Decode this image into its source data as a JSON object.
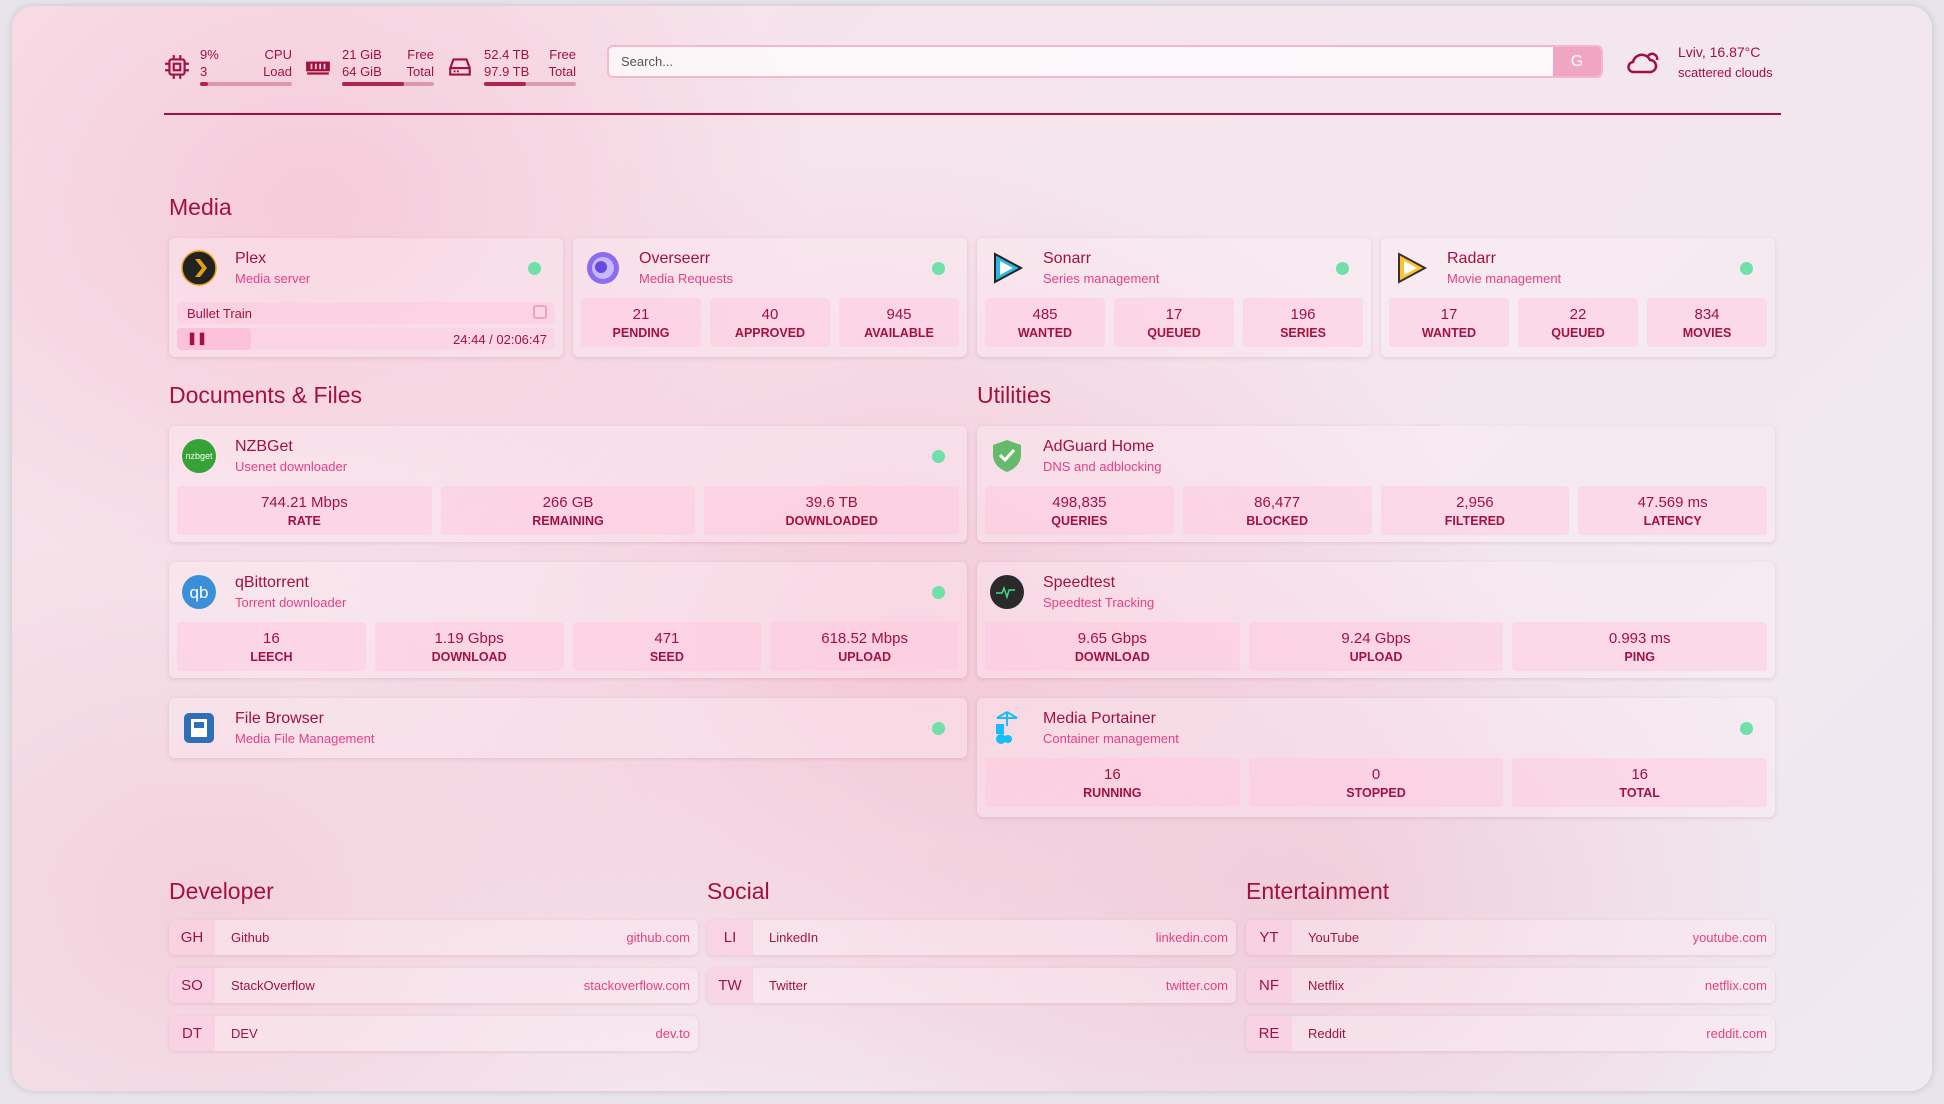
{
  "resources": {
    "cpu": {
      "value": "9%",
      "value2": "3",
      "label": "CPU",
      "label2": "Load",
      "usage_percent": 9
    },
    "memory": {
      "value": "21 GiB",
      "value2": "64 GiB",
      "label": "Free",
      "label2": "Total",
      "usage_percent": 67
    },
    "disk": {
      "value": "52.4 TB",
      "value2": "97.9 TB",
      "label": "Free",
      "label2": "Total",
      "usage_percent": 46
    }
  },
  "search": {
    "placeholder": "Search...",
    "button_label": "G"
  },
  "weather": {
    "location_temp": "Lviv, 16.87°C",
    "condition": "scattered clouds",
    "icon": "cloud-sun-icon"
  },
  "colors": {
    "accent": "#a3123f",
    "secondary": "#e53f86",
    "status_online": "#6fe0a8"
  },
  "groups": {
    "media": "Media",
    "documents": "Documents & Files",
    "utilities": "Utilities",
    "developer": "Developer",
    "social": "Social",
    "entertainment": "Entertainment"
  },
  "plex": {
    "title": "Plex",
    "subtitle": "Media server",
    "now_playing": "Bullet Train",
    "time": "24:44 / 02:06:47",
    "progress_percent": 19.5
  },
  "services": [
    {
      "id": "overseerr",
      "title": "Overseerr",
      "subtitle": "Media Requests",
      "icon": "overseerr-icon",
      "stats": [
        {
          "v": "21",
          "k": "PENDING"
        },
        {
          "v": "40",
          "k": "APPROVED"
        },
        {
          "v": "945",
          "k": "AVAILABLE"
        }
      ]
    },
    {
      "id": "sonarr",
      "title": "Sonarr",
      "subtitle": "Series management",
      "icon": "sonarr-icon",
      "stats": [
        {
          "v": "485",
          "k": "WANTED"
        },
        {
          "v": "17",
          "k": "QUEUED"
        },
        {
          "v": "196",
          "k": "SERIES"
        }
      ]
    },
    {
      "id": "radarr",
      "title": "Radarr",
      "subtitle": "Movie management",
      "icon": "radarr-icon",
      "stats": [
        {
          "v": "17",
          "k": "WANTED"
        },
        {
          "v": "22",
          "k": "QUEUED"
        },
        {
          "v": "834",
          "k": "MOVIES"
        }
      ]
    },
    {
      "id": "nzbget",
      "title": "NZBGet",
      "subtitle": "Usenet downloader",
      "icon": "nzbget-icon",
      "stats": [
        {
          "v": "744.21 Mbps",
          "k": "RATE"
        },
        {
          "v": "266 GB",
          "k": "REMAINING"
        },
        {
          "v": "39.6 TB",
          "k": "DOWNLOADED"
        }
      ]
    },
    {
      "id": "qbittorrent",
      "title": "qBittorrent",
      "subtitle": "Torrent downloader",
      "icon": "qbittorrent-icon",
      "stats": [
        {
          "v": "16",
          "k": "LEECH"
        },
        {
          "v": "1.19 Gbps",
          "k": "DOWNLOAD"
        },
        {
          "v": "471",
          "k": "SEED"
        },
        {
          "v": "618.52 Mbps",
          "k": "UPLOAD"
        }
      ]
    },
    {
      "id": "filebrowser",
      "title": "File Browser",
      "subtitle": "Media File Management",
      "icon": "file-browser-icon",
      "stats": []
    },
    {
      "id": "adguard",
      "title": "AdGuard Home",
      "subtitle": "DNS and adblocking",
      "icon": "adguard-shield-icon",
      "nodot": true,
      "stats": [
        {
          "v": "498,835",
          "k": "QUERIES"
        },
        {
          "v": "86,477",
          "k": "BLOCKED"
        },
        {
          "v": "2,956",
          "k": "FILTERED"
        },
        {
          "v": "47.569 ms",
          "k": "LATENCY"
        }
      ]
    },
    {
      "id": "speedtest",
      "title": "Speedtest",
      "subtitle": "Speedtest Tracking",
      "icon": "speedtest-icon",
      "nodot": true,
      "stats": [
        {
          "v": "9.65 Gbps",
          "k": "DOWNLOAD"
        },
        {
          "v": "9.24 Gbps",
          "k": "UPLOAD"
        },
        {
          "v": "0.993 ms",
          "k": "PING"
        }
      ]
    },
    {
      "id": "portainer",
      "title": "Media Portainer",
      "subtitle": "Container management",
      "icon": "portainer-icon",
      "stats": [
        {
          "v": "16",
          "k": "RUNNING"
        },
        {
          "v": "0",
          "k": "STOPPED"
        },
        {
          "v": "16",
          "k": "TOTAL"
        }
      ]
    }
  ],
  "bookmarks": [
    [
      {
        "abbr": "GH",
        "name": "Github",
        "url": "github.com"
      },
      {
        "abbr": "SO",
        "name": "StackOverflow",
        "url": "stackoverflow.com"
      },
      {
        "abbr": "DT",
        "name": "DEV",
        "url": "dev.to"
      }
    ],
    [
      {
        "abbr": "LI",
        "name": "LinkedIn",
        "url": "linkedin.com"
      },
      {
        "abbr": "TW",
        "name": "Twitter",
        "url": "twitter.com"
      }
    ],
    [
      {
        "abbr": "YT",
        "name": "YouTube",
        "url": "youtube.com"
      },
      {
        "abbr": "NF",
        "name": "Netflix",
        "url": "netflix.com"
      },
      {
        "abbr": "RE",
        "name": "Reddit",
        "url": "reddit.com"
      }
    ]
  ]
}
